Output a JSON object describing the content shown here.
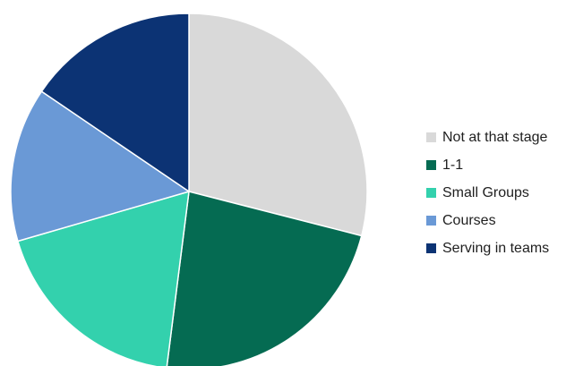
{
  "chart_data": {
    "type": "pie",
    "title": "",
    "start": "12 o'clock, clockwise",
    "legend_position": "right",
    "slices": [
      {
        "label": "Not at that stage",
        "value": 29.0,
        "color": "#d9d9d9"
      },
      {
        "label": "1-1",
        "value": 23.0,
        "color": "#056b52"
      },
      {
        "label": "Small Groups",
        "value": 18.5,
        "color": "#33d1ad"
      },
      {
        "label": "Courses",
        "value": 14.0,
        "color": "#6a99d6"
      },
      {
        "label": "Serving in teams",
        "value": 15.5,
        "color": "#0c3374"
      }
    ]
  }
}
